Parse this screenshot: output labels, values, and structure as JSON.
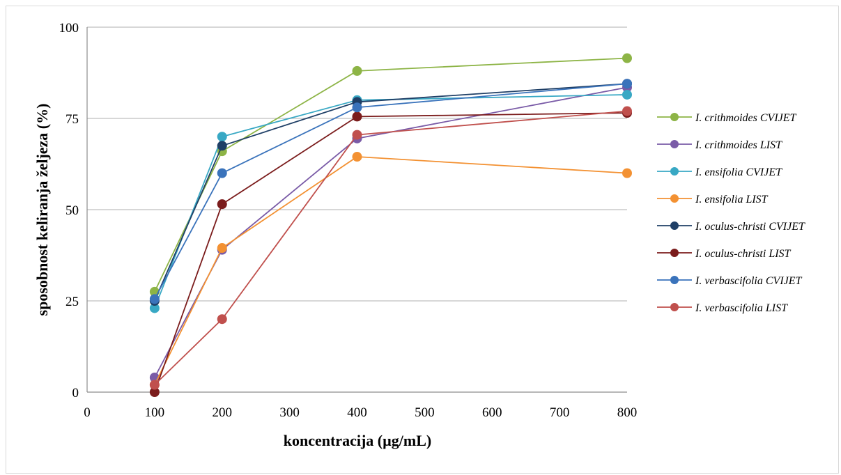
{
  "chart_data": {
    "type": "line",
    "xlabel": "koncentracija (µg/mL)",
    "ylabel": "sposobnost keliranja željeza (%)",
    "xlim": [
      0,
      800
    ],
    "ylim": [
      0,
      100
    ],
    "x_ticks": [
      0,
      100,
      200,
      300,
      400,
      500,
      600,
      700,
      800
    ],
    "y_ticks": [
      0,
      25,
      50,
      75,
      100
    ],
    "grid": "horizontal",
    "legend_position": "right",
    "x": [
      100,
      200,
      400,
      800
    ],
    "series": [
      {
        "name": "I. crithmoides CVIJET",
        "color": "#8db446",
        "values": [
          27.5,
          66,
          88,
          91.5
        ]
      },
      {
        "name": "I. crithmoides LIST",
        "color": "#7a5ba7",
        "values": [
          4,
          39,
          69.5,
          83.5
        ]
      },
      {
        "name": "I. ensifolia CVIJET",
        "color": "#38a8c4",
        "values": [
          23,
          70,
          80,
          81.5
        ]
      },
      {
        "name": "I. ensifolia LIST",
        "color": "#f39132",
        "values": [
          2,
          39.5,
          64.5,
          60
        ]
      },
      {
        "name": "I. oculus-christi CVIJET",
        "color": "#1f3f66",
        "values": [
          25,
          67.5,
          79.5,
          84.5
        ]
      },
      {
        "name": "I. oculus-christi LIST",
        "color": "#7b1c1c",
        "values": [
          0,
          51.5,
          75.5,
          76.5
        ]
      },
      {
        "name": "I. verbascifolia CVIJET",
        "color": "#3a73bb",
        "values": [
          25.5,
          60,
          78,
          84.5
        ]
      },
      {
        "name": "I. verbascifolia LIST",
        "color": "#c0504d",
        "values": [
          2,
          20,
          70.5,
          77
        ]
      }
    ]
  }
}
